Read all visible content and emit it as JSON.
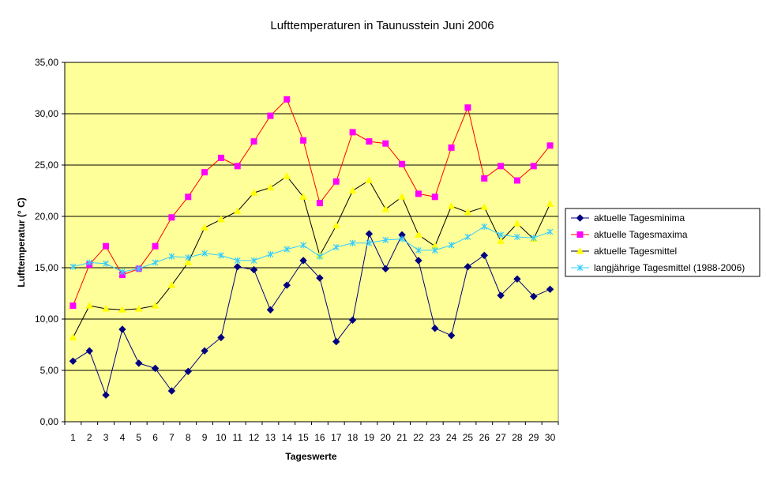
{
  "chart_data": {
    "type": "line",
    "title": "Lufttemperaturen in Taunusstein  Juni  2006",
    "xlabel": "Tageswerte",
    "ylabel": "Lufttemperatur (° C)",
    "ylim": [
      0,
      35
    ],
    "ytick_step": 5,
    "ytick_labels": [
      "0,00",
      "5,00",
      "10,00",
      "15,00",
      "20,00",
      "25,00",
      "30,00",
      "35,00"
    ],
    "grid": true,
    "legend_position": "right",
    "categories": [
      "1",
      "2",
      "3",
      "4",
      "5",
      "6",
      "7",
      "8",
      "9",
      "10",
      "11",
      "12",
      "13",
      "14",
      "15",
      "16",
      "17",
      "18",
      "19",
      "20",
      "21",
      "22",
      "23",
      "24",
      "25",
      "26",
      "27",
      "28",
      "29",
      "30"
    ],
    "series": [
      {
        "name": "aktuelle Tagesminima",
        "color": "#000080",
        "marker": "diamond",
        "values": [
          5.9,
          6.9,
          2.6,
          9.0,
          5.7,
          5.2,
          3.0,
          4.9,
          6.9,
          8.2,
          15.1,
          14.8,
          10.9,
          13.3,
          15.7,
          14.0,
          7.8,
          9.9,
          18.3,
          14.9,
          18.2,
          15.7,
          9.1,
          8.4,
          15.1,
          16.2,
          12.3,
          13.9,
          12.2,
          12.9
        ]
      },
      {
        "name": "aktuelle Tagesmaxima",
        "color": "#ff00ff",
        "line_color": "#ff0000",
        "marker": "square",
        "values": [
          11.3,
          15.3,
          17.1,
          14.3,
          14.9,
          17.1,
          19.9,
          21.9,
          24.3,
          25.7,
          24.9,
          27.3,
          29.8,
          31.4,
          27.4,
          21.3,
          23.4,
          28.2,
          27.3,
          27.1,
          25.1,
          22.2,
          21.9,
          26.7,
          30.6,
          23.7,
          24.9,
          23.5,
          24.9,
          26.9
        ]
      },
      {
        "name": "aktuelle Tagesmittel",
        "color": "#ffff00",
        "line_color": "#000000",
        "marker": "triangle",
        "values": [
          8.2,
          11.3,
          11.0,
          10.9,
          11.0,
          11.3,
          13.3,
          15.5,
          18.9,
          19.7,
          20.5,
          22.3,
          22.8,
          23.9,
          21.9,
          16.2,
          19.1,
          22.5,
          23.5,
          20.7,
          21.9,
          18.2,
          17.1,
          21.0,
          20.4,
          20.9,
          17.6,
          19.3,
          17.8,
          21.2
        ]
      },
      {
        "name": "langjährige Tagesmittel (1988-2006)",
        "color": "#33ccff",
        "marker": "star",
        "values": [
          15.1,
          15.5,
          15.4,
          14.6,
          14.9,
          15.5,
          16.1,
          16.0,
          16.4,
          16.2,
          15.7,
          15.7,
          16.3,
          16.8,
          17.2,
          16.1,
          17.0,
          17.4,
          17.4,
          17.7,
          17.8,
          16.7,
          16.7,
          17.2,
          18.0,
          19.0,
          18.2,
          18.0,
          17.9,
          18.5
        ]
      }
    ]
  },
  "colors": {
    "plot_background": "#ffff99",
    "plot_border": "#808080",
    "gridline": "#000000"
  }
}
